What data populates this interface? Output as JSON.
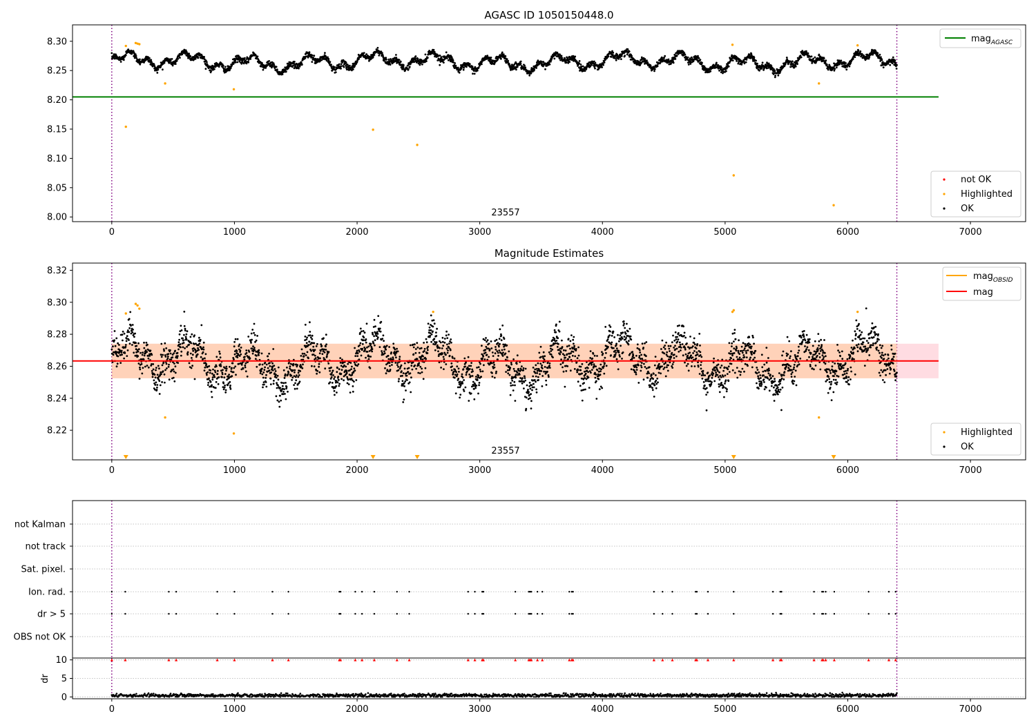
{
  "figure": {
    "title_top": "AGASC ID 1050150448.0",
    "title_mid": "Magnitude Estimates",
    "obsid_label": "23557"
  },
  "chart_data": [
    {
      "type": "scatter",
      "title": "AGASC ID 1050150448.0",
      "xlim": [
        -320,
        7450
      ],
      "ylim": [
        7.992,
        8.328
      ],
      "xticks": [
        0,
        1000,
        2000,
        3000,
        4000,
        5000,
        6000,
        7000
      ],
      "yticks": [
        8.0,
        8.05,
        8.1,
        8.15,
        8.2,
        8.25,
        8.3
      ],
      "ytick_labels": [
        "8.00",
        "8.05",
        "8.10",
        "8.15",
        "8.20",
        "8.25",
        "8.30"
      ],
      "vlines": [
        0,
        6400
      ],
      "hline": {
        "name": "mag_AGASC",
        "value": 8.205,
        "x": [
          0,
          6740
        ],
        "color": "#008000"
      },
      "ok_series": {
        "name": "OK",
        "color": "#000000",
        "x_range": [
          0,
          6400
        ],
        "baseline": 8.263,
        "spread": 0.011
      },
      "highlighted": {
        "name": "Highlighted",
        "color": "#ffa500",
        "points": [
          [
            115,
            8.154
          ],
          [
            435,
            8.228
          ],
          [
            995,
            8.218
          ],
          [
            2130,
            8.149
          ],
          [
            2490,
            8.123
          ],
          [
            5070,
            8.071
          ],
          [
            5765,
            8.228
          ],
          [
            5885,
            8.02
          ],
          [
            115,
            8.292
          ],
          [
            195,
            8.297
          ],
          [
            210,
            8.296
          ],
          [
            225,
            8.295
          ],
          [
            5060,
            8.294
          ],
          [
            6080,
            8.293
          ]
        ]
      },
      "not_ok": {
        "name": "not OK",
        "color": "#ff0000"
      },
      "legend_upper": [
        {
          "label": "mag",
          "sub": "AGASC",
          "color": "#008000"
        }
      ],
      "legend_lower": [
        {
          "label": "not OK",
          "color": "#ff0000"
        },
        {
          "label": "Highlighted",
          "color": "#ffa500"
        },
        {
          "label": "OK",
          "color": "#000000"
        }
      ]
    },
    {
      "type": "scatter",
      "title": "Magnitude Estimates",
      "xlim": [
        -320,
        7450
      ],
      "ylim": [
        8.2015,
        8.3245
      ],
      "xticks": [
        0,
        1000,
        2000,
        3000,
        4000,
        5000,
        6000,
        7000
      ],
      "yticks": [
        8.22,
        8.24,
        8.26,
        8.28,
        8.3,
        8.32
      ],
      "ytick_labels": [
        "8.22",
        "8.24",
        "8.26",
        "8.28",
        "8.30",
        "8.32"
      ],
      "vlines": [
        0,
        6400
      ],
      "mag_line": {
        "name": "mag",
        "value": 8.2633,
        "x": [
          0,
          6740
        ],
        "color": "#ff0000",
        "band": [
          8.2525,
          8.2741
        ]
      },
      "obsid_band": {
        "name": "mag_OBSID",
        "value": 8.2633,
        "band": [
          8.2525,
          8.2741
        ],
        "color": "#ffa500"
      },
      "ok_series": {
        "name": "OK",
        "color": "#000000",
        "x_range": [
          0,
          6400
        ],
        "baseline": 8.263,
        "spread": 0.011
      },
      "highlighted": {
        "name": "Highlighted",
        "color": "#ffa500",
        "points": [
          [
            435,
            8.228
          ],
          [
            995,
            8.218
          ],
          [
            5765,
            8.228
          ],
          [
            115,
            8.293
          ],
          [
            195,
            8.299
          ],
          [
            210,
            8.298
          ],
          [
            225,
            8.296
          ],
          [
            5060,
            8.294
          ],
          [
            5070,
            8.295
          ],
          [
            6080,
            8.294
          ],
          [
            2620,
            8.294
          ]
        ]
      },
      "out_of_range_markers": [
        115,
        2130,
        2490,
        5070,
        5885
      ],
      "legend_upper": [
        {
          "label": "mag",
          "sub": "OBSID",
          "color": "#ffa500"
        },
        {
          "label": "mag",
          "sub": "",
          "color": "#ff0000"
        }
      ],
      "legend_lower": [
        {
          "label": "Highlighted",
          "color": "#ffa500"
        },
        {
          "label": "OK",
          "color": "#000000"
        }
      ]
    },
    {
      "type": "scatter",
      "title": "",
      "xlim": [
        -320,
        7450
      ],
      "categories": [
        "not Kalman",
        "not track",
        "Sat. pixel.",
        "Ion. rad.",
        "dr > 5",
        "OBS not OK"
      ],
      "vlines": [
        0,
        6400
      ],
      "flag_x": [
        0,
        110,
        465,
        525,
        860,
        1000,
        1310,
        1440,
        1855,
        1865,
        1985,
        2040,
        2140,
        2325,
        2425,
        2905,
        2960,
        3020,
        3030,
        3290,
        3400,
        3410,
        3420,
        3470,
        3510,
        3730,
        3750,
        3760,
        4420,
        4490,
        4570,
        4760,
        4770,
        4860,
        5070,
        5390,
        5450,
        5460,
        5725,
        5790,
        5800,
        5820,
        5890,
        6170,
        6335,
        6390
      ],
      "flag_rows": [
        "Ion. rad.",
        "dr > 5"
      ]
    },
    {
      "type": "scatter",
      "title": "",
      "ylabel": "dr",
      "xlim": [
        -320,
        7450
      ],
      "ylim": [
        -0.5,
        10.5
      ],
      "xticks": [
        0,
        1000,
        2000,
        3000,
        4000,
        5000,
        6000,
        7000
      ],
      "yticks": [
        0,
        5,
        10
      ],
      "clipped_value": 10,
      "clipped_color": "#ff0000",
      "ok_series": {
        "name": "OK",
        "color": "#000000",
        "x_range": [
          0,
          6400
        ],
        "level": 0.4,
        "spread": 0.25
      }
    }
  ]
}
